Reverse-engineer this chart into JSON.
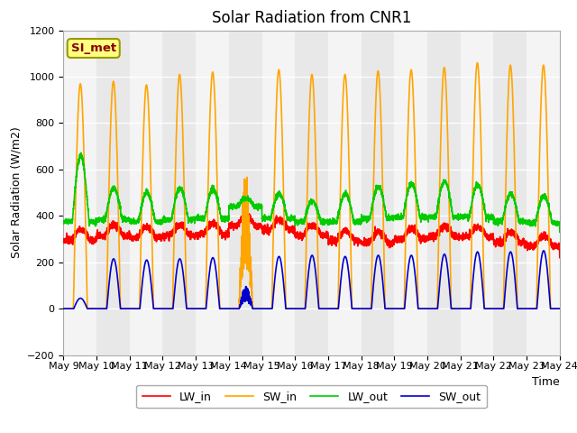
{
  "title": "Solar Radiation from CNR1",
  "xlabel": "Time",
  "ylabel": "Solar Radiation (W/m2)",
  "ylim": [
    -200,
    1200
  ],
  "yticks": [
    -200,
    0,
    200,
    400,
    600,
    800,
    1000,
    1200
  ],
  "xtick_labels": [
    "May 9",
    "May 10",
    "May 11",
    "May 12",
    "May 13",
    "May 14",
    "May 15",
    "May 16",
    "May 17",
    "May 18",
    "May 19",
    "May 20",
    "May 21",
    "May 22",
    "May 23",
    "May 24"
  ],
  "legend_entries": [
    "LW_in",
    "SW_in",
    "LW_out",
    "SW_out"
  ],
  "line_colors": [
    "#ff0000",
    "#ffa500",
    "#00cc00",
    "#0000cd"
  ],
  "plot_bg_color": "#e8e8e8",
  "grid_color": "#ffffff",
  "vband_color": "#d3d3d3",
  "si_met_bg": "#ffff80",
  "si_met_fg": "#8b0000",
  "si_met_edge": "#999900",
  "title_fontsize": 12,
  "axis_label_fontsize": 9,
  "tick_fontsize": 8,
  "legend_fontsize": 9
}
